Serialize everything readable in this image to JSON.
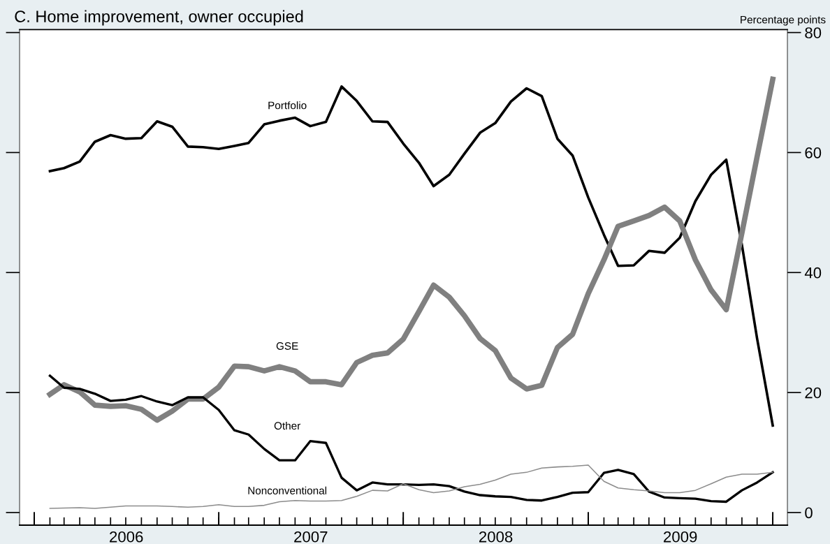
{
  "chart_data": {
    "type": "line",
    "title": "C. Home improvement, owner occupied",
    "ylabel": "Percentage points",
    "x": [
      "2006-02",
      "2006-03",
      "2006-04",
      "2006-05",
      "2006-06",
      "2006-07",
      "2006-08",
      "2006-09",
      "2006-10",
      "2006-11",
      "2006-12",
      "2007-01",
      "2007-02",
      "2007-03",
      "2007-04",
      "2007-05",
      "2007-06",
      "2007-07",
      "2007-08",
      "2007-09",
      "2007-10",
      "2007-11",
      "2007-12",
      "2008-01",
      "2008-02",
      "2008-03",
      "2008-04",
      "2008-05",
      "2008-06",
      "2008-07",
      "2008-08",
      "2008-09",
      "2008-10",
      "2008-11",
      "2008-12",
      "2009-01",
      "2009-02",
      "2009-03",
      "2009-04",
      "2009-05",
      "2009-06",
      "2009-07",
      "2009-08",
      "2009-09",
      "2009-10",
      "2009-11",
      "2009-12",
      "2010-01"
    ],
    "series": [
      {
        "name": "Portfolio",
        "color": "#000000",
        "values": [
          56.9,
          57.4,
          58.5,
          61.8,
          62.9,
          62.3,
          62.4,
          65.2,
          64.3,
          61.0,
          60.9,
          60.6,
          61.1,
          61.6,
          64.7,
          65.3,
          65.8,
          64.4,
          65.1,
          71.0,
          68.6,
          65.2,
          65.1,
          61.5,
          58.3,
          54.4,
          56.3,
          59.8,
          63.3,
          64.9,
          68.5,
          70.7,
          69.4,
          62.3,
          59.5,
          52.5,
          46.3,
          41.1,
          41.2,
          43.6,
          43.3,
          45.8,
          51.9,
          56.3,
          58.8,
          44.6,
          29.0,
          14.5
        ]
      },
      {
        "name": "GSE",
        "color": "#808080",
        "values": [
          19.7,
          21.3,
          20.1,
          17.9,
          17.7,
          17.8,
          17.2,
          15.4,
          16.9,
          18.9,
          18.9,
          20.9,
          24.4,
          24.3,
          23.6,
          24.3,
          23.6,
          21.8,
          21.8,
          21.3,
          25.0,
          26.2,
          26.6,
          28.9,
          33.5,
          37.9,
          35.9,
          32.8,
          29.0,
          27.0,
          22.4,
          20.6,
          21.2,
          27.5,
          29.7,
          36.5,
          42.1,
          47.7,
          48.6,
          49.5,
          50.9,
          48.6,
          42.1,
          37.1,
          33.8,
          46.6,
          59.3,
          72.2
        ]
      },
      {
        "name": "Other",
        "color": "#000000",
        "values": [
          22.8,
          20.8,
          20.6,
          19.8,
          18.6,
          18.8,
          19.4,
          18.5,
          17.9,
          19.2,
          19.2,
          17.1,
          13.7,
          13.0,
          10.6,
          8.7,
          8.7,
          11.9,
          11.6,
          5.8,
          3.7,
          5.0,
          4.7,
          4.7,
          4.6,
          4.7,
          4.4,
          3.5,
          2.9,
          2.7,
          2.6,
          2.1,
          2.0,
          2.6,
          3.3,
          3.4,
          6.6,
          7.1,
          6.4,
          3.5,
          2.5,
          2.4,
          2.3,
          1.9,
          1.8,
          3.7,
          5.0,
          6.7
        ]
      },
      {
        "name": "Nonconventional",
        "color": "#8c8c8c",
        "values": [
          0.7,
          0.75,
          0.8,
          0.7,
          0.9,
          1.1,
          1.1,
          1.1,
          1.0,
          0.9,
          1.0,
          1.3,
          1.0,
          1.0,
          1.2,
          1.8,
          2.0,
          1.9,
          1.9,
          2.0,
          2.7,
          3.7,
          3.6,
          4.8,
          3.8,
          3.3,
          3.6,
          4.3,
          4.7,
          5.4,
          6.4,
          6.7,
          7.4,
          7.6,
          7.7,
          7.9,
          5.2,
          4.1,
          3.8,
          3.6,
          3.3,
          3.3,
          3.7,
          4.8,
          5.9,
          6.4,
          6.4,
          6.7
        ]
      }
    ],
    "xlim": [
      "2005-12-03",
      "2010-01-30"
    ],
    "xticks": [
      {
        "value": "2006-07-02",
        "label": "2006"
      },
      {
        "value": "2007-07-02",
        "label": "2007"
      },
      {
        "value": "2008-07-02",
        "label": "2008"
      },
      {
        "value": "2009-07-02",
        "label": "2009"
      },
      {
        "value": "2006-01",
        "label": null
      },
      {
        "value": "2006-02",
        "label": null
      },
      {
        "value": "2006-03",
        "label": null
      },
      {
        "value": "2006-04",
        "label": null
      },
      {
        "value": "2006-05",
        "label": null
      },
      {
        "value": "2006-06",
        "label": null
      },
      {
        "value": "2006-07",
        "label": null
      },
      {
        "value": "2006-08",
        "label": null
      },
      {
        "value": "2006-09",
        "label": null
      },
      {
        "value": "2006-10",
        "label": null
      },
      {
        "value": "2006-11",
        "label": null
      },
      {
        "value": "2006-12",
        "label": null
      },
      {
        "value": "2007-01",
        "label": null
      },
      {
        "value": "2007-02",
        "label": null
      },
      {
        "value": "2007-03",
        "label": null
      },
      {
        "value": "2007-04",
        "label": null
      },
      {
        "value": "2007-05",
        "label": null
      },
      {
        "value": "2007-06",
        "label": null
      },
      {
        "value": "2007-07",
        "label": null
      },
      {
        "value": "2007-08",
        "label": null
      },
      {
        "value": "2007-09",
        "label": null
      },
      {
        "value": "2007-10",
        "label": null
      },
      {
        "value": "2007-11",
        "label": null
      },
      {
        "value": "2007-12",
        "label": null
      },
      {
        "value": "2008-01",
        "label": null
      },
      {
        "value": "2008-02",
        "label": null
      },
      {
        "value": "2008-03",
        "label": null
      },
      {
        "value": "2008-04",
        "label": null
      },
      {
        "value": "2008-05",
        "label": null
      },
      {
        "value": "2008-06",
        "label": null
      },
      {
        "value": "2008-07",
        "label": null
      },
      {
        "value": "2008-08",
        "label": null
      },
      {
        "value": "2008-09",
        "label": null
      },
      {
        "value": "2008-10",
        "label": null
      },
      {
        "value": "2008-11",
        "label": null
      },
      {
        "value": "2008-12",
        "label": null
      },
      {
        "value": "2009-01",
        "label": null
      },
      {
        "value": "2009-02",
        "label": null
      },
      {
        "value": "2009-03",
        "label": null
      },
      {
        "value": "2009-04",
        "label": null
      },
      {
        "value": "2009-05",
        "label": null
      },
      {
        "value": "2009-06",
        "label": null
      },
      {
        "value": "2009-07",
        "label": null
      },
      {
        "value": "2009-08",
        "label": null
      },
      {
        "value": "2009-09",
        "label": null
      },
      {
        "value": "2009-10",
        "label": null
      },
      {
        "value": "2009-11",
        "label": null
      },
      {
        "value": "2009-12",
        "label": null
      },
      {
        "value": "2010-01",
        "label": null
      }
    ],
    "ylim": [
      -2.1,
      80.5
    ],
    "yticks": [
      0,
      20,
      40,
      60,
      80
    ],
    "grid": false,
    "legend": false,
    "line_style": "solid",
    "marker": "none"
  }
}
